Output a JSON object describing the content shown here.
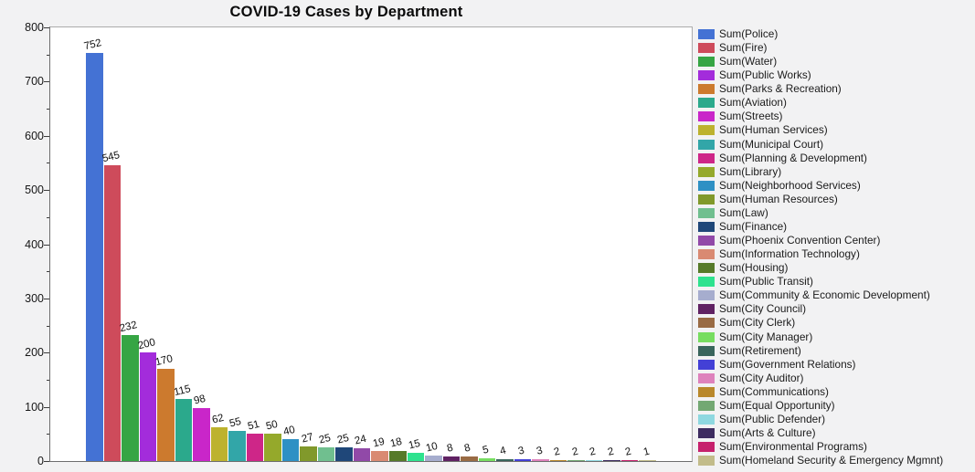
{
  "chart_data": {
    "type": "bar",
    "title": "COVID-19 Cases by Department",
    "xlabel": "",
    "ylabel": "",
    "ylim": [
      0,
      800
    ],
    "ytick_step": 100,
    "ytick_minor_step": 50,
    "yticks": [
      0,
      100,
      200,
      300,
      400,
      500,
      600,
      700,
      800
    ],
    "grid": false,
    "legend_position": "right",
    "value_labels_shown": true,
    "legend_label_format": "Sum(category)",
    "bars": [
      {
        "category": "Police",
        "legend": "Sum(Police)",
        "value": 752,
        "color": "#4472D4"
      },
      {
        "category": "Fire",
        "legend": "Sum(Fire)",
        "value": 545,
        "color": "#CE4B5B"
      },
      {
        "category": "Water",
        "legend": "Sum(Water)",
        "value": 232,
        "color": "#36A544"
      },
      {
        "category": "Public Works",
        "legend": "Sum(Public Works)",
        "value": 200,
        "color": "#A32CDB"
      },
      {
        "category": "Parks & Recreation",
        "legend": "Sum(Parks & Recreation)",
        "value": 170,
        "color": "#CC7A2E"
      },
      {
        "category": "Aviation",
        "legend": "Sum(Aviation)",
        "value": 115,
        "color": "#2BA98C"
      },
      {
        "category": "Streets",
        "legend": "Sum(Streets)",
        "value": 98,
        "color": "#C926C9"
      },
      {
        "category": "Human Services",
        "legend": "Sum(Human Services)",
        "value": 62,
        "color": "#BDB22E"
      },
      {
        "category": "Municipal Court",
        "legend": "Sum(Municipal Court)",
        "value": 55,
        "color": "#32A6A8"
      },
      {
        "category": "Planning & Development",
        "legend": "Sum(Planning & Development)",
        "value": 51,
        "color": "#CE2688"
      },
      {
        "category": "Library",
        "legend": "Sum(Library)",
        "value": 50,
        "color": "#95A92B"
      },
      {
        "category": "Neighborhood Services",
        "legend": "Sum(Neighborhood Services)",
        "value": 40,
        "color": "#2E90C4"
      },
      {
        "category": "Human Resources",
        "legend": "Sum(Human Resources)",
        "value": 27,
        "color": "#81992B"
      },
      {
        "category": "Law",
        "legend": "Sum(Law)",
        "value": 25,
        "color": "#70BF8F"
      },
      {
        "category": "Finance",
        "legend": "Sum(Finance)",
        "value": 25,
        "color": "#1F4779"
      },
      {
        "category": "Phoenix Convention Center",
        "legend": "Sum(Phoenix Convention Center)",
        "value": 24,
        "color": "#9149A8"
      },
      {
        "category": "Information Technology",
        "legend": "Sum(Information Technology)",
        "value": 19,
        "color": "#D98A72"
      },
      {
        "category": "Housing",
        "legend": "Sum(Housing)",
        "value": 18,
        "color": "#567A29"
      },
      {
        "category": "Public Transit",
        "legend": "Sum(Public Transit)",
        "value": 15,
        "color": "#2EE28E"
      },
      {
        "category": "Community & Economic Development",
        "legend": "Sum(Community & Economic Development)",
        "value": 10,
        "color": "#A6ADCE"
      },
      {
        "category": "City Council",
        "legend": "Sum(City Council)",
        "value": 8,
        "color": "#602263"
      },
      {
        "category": "City Clerk",
        "legend": "Sum(City Clerk)",
        "value": 8,
        "color": "#996B44"
      },
      {
        "category": "City Manager",
        "legend": "Sum(City Manager)",
        "value": 5,
        "color": "#77DD60"
      },
      {
        "category": "Retirement",
        "legend": "Sum(Retirement)",
        "value": 4,
        "color": "#39655C"
      },
      {
        "category": "Government Relations",
        "legend": "Sum(Government Relations)",
        "value": 3,
        "color": "#4340D6"
      },
      {
        "category": "City Auditor",
        "legend": "Sum(City Auditor)",
        "value": 3,
        "color": "#DE82BC"
      },
      {
        "category": "Communications",
        "legend": "Sum(Communications)",
        "value": 2,
        "color": "#B9882B"
      },
      {
        "category": "Equal Opportunity",
        "legend": "Sum(Equal Opportunity)",
        "value": 2,
        "color": "#73A873"
      },
      {
        "category": "Public Defender",
        "legend": "Sum(Public Defender)",
        "value": 2,
        "color": "#8ED8E0"
      },
      {
        "category": "Arts & Culture",
        "legend": "Sum(Arts & Culture)",
        "value": 2,
        "color": "#3D2C60"
      },
      {
        "category": "Environmental Programs",
        "legend": "Sum(Environmental Programs)",
        "value": 2,
        "color": "#C6216D"
      },
      {
        "category": "Homeland Security & Emergency Mgmnt",
        "legend": "Sum(Homeland Security & Emergency Mgmnt)",
        "value": 1,
        "color": "#C2BC8A"
      }
    ]
  }
}
